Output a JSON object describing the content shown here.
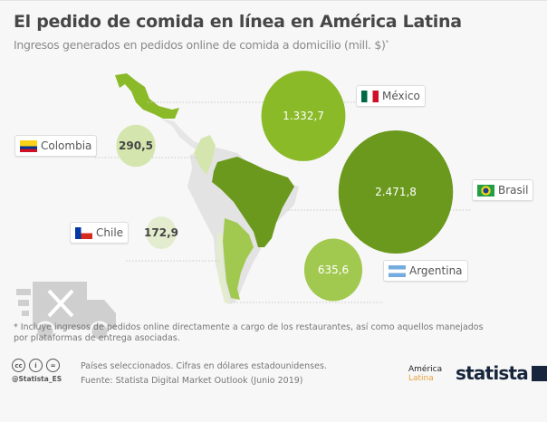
{
  "header": {
    "title": "El pedido de comida en línea en América Latina",
    "subtitle": "Ingresos generados en pedidos online de comida a domicilio (mill. $)",
    "subtitle_mark": "*"
  },
  "chart_data": {
    "type": "bubble",
    "title": "El pedido de comida en línea en América Latina",
    "unit": "mill. $",
    "series": [
      {
        "country": "México",
        "value": 1332.7,
        "label": "1.332,7",
        "color": "#8aba28"
      },
      {
        "country": "Brasil",
        "value": 2471.8,
        "label": "2.471,8",
        "color": "#6b991d"
      },
      {
        "country": "Argentina",
        "value": 635.6,
        "label": "635,6",
        "color": "#a2c94f"
      },
      {
        "country": "Colombia",
        "value": 290.5,
        "label": "290,5",
        "color": "#d4e6ae"
      },
      {
        "country": "Chile",
        "value": 172.9,
        "label": "172,9",
        "color": "#e3ecce"
      }
    ]
  },
  "footer": {
    "note": "* Incluye ingresos de pedidos online directamente a cargo de los restaurantes, así como aquellos manejados por plataformas de entrega asociadas.",
    "line1": "Países seleccionados. Cifras en dólares estadounidenses.",
    "line2": "Fuente: Statista Digital Market Outlook (Junio 2019)",
    "handle": "@Statista_ES",
    "cc_labels": [
      "cc",
      "i",
      "="
    ],
    "logo_america": "América",
    "logo_latina": "Latina",
    "logo_statista": "statista"
  }
}
